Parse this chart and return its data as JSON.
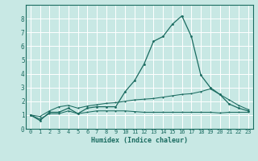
{
  "xlabel": "Humidex (Indice chaleur)",
  "ylabel": "",
  "background_color": "#c8e8e4",
  "grid_color": "#ffffff",
  "line_color": "#1a6b60",
  "spine_color": "#1a6b60",
  "xlim": [
    -0.5,
    23.5
  ],
  "ylim": [
    0,
    9.0
  ],
  "x_ticks": [
    0,
    1,
    2,
    3,
    4,
    5,
    6,
    7,
    8,
    9,
    10,
    11,
    12,
    13,
    14,
    15,
    16,
    17,
    18,
    19,
    20,
    21,
    22,
    23
  ],
  "y_ticks": [
    0,
    1,
    2,
    3,
    4,
    5,
    6,
    7,
    8
  ],
  "series": {
    "main": {
      "x": [
        0,
        1,
        2,
        3,
        4,
        5,
        6,
        7,
        8,
        9,
        10,
        11,
        12,
        13,
        14,
        15,
        16,
        17,
        18,
        19,
        20,
        21,
        22,
        23
      ],
      "y": [
        1.0,
        0.6,
        1.2,
        1.2,
        1.5,
        1.1,
        1.5,
        1.6,
        1.6,
        1.6,
        2.7,
        3.5,
        4.7,
        6.35,
        6.7,
        7.6,
        8.2,
        6.7,
        3.9,
        3.0,
        2.5,
        1.8,
        1.5,
        1.3
      ]
    },
    "upper": {
      "x": [
        0,
        1,
        2,
        3,
        4,
        5,
        6,
        7,
        8,
        9,
        10,
        11,
        12,
        13,
        14,
        15,
        16,
        17,
        18,
        19,
        20,
        21,
        22,
        23
      ],
      "y": [
        1.0,
        0.9,
        1.3,
        1.6,
        1.7,
        1.5,
        1.65,
        1.75,
        1.85,
        1.9,
        2.0,
        2.1,
        2.15,
        2.2,
        2.3,
        2.4,
        2.5,
        2.55,
        2.7,
        2.9,
        2.5,
        2.1,
        1.7,
        1.4
      ]
    },
    "lower": {
      "x": [
        0,
        1,
        2,
        3,
        4,
        5,
        6,
        7,
        8,
        9,
        10,
        11,
        12,
        13,
        14,
        15,
        16,
        17,
        18,
        19,
        20,
        21,
        22,
        23
      ],
      "y": [
        1.0,
        0.7,
        1.1,
        1.1,
        1.3,
        1.1,
        1.2,
        1.3,
        1.3,
        1.3,
        1.3,
        1.25,
        1.2,
        1.2,
        1.2,
        1.2,
        1.2,
        1.2,
        1.2,
        1.2,
        1.15,
        1.2,
        1.2,
        1.2
      ]
    }
  },
  "tick_fontsize": 5.0,
  "xlabel_fontsize": 6.0,
  "marker_size_main": 2.0,
  "marker_size_band": 1.5,
  "linewidth_main": 0.9,
  "linewidth_band": 0.75
}
